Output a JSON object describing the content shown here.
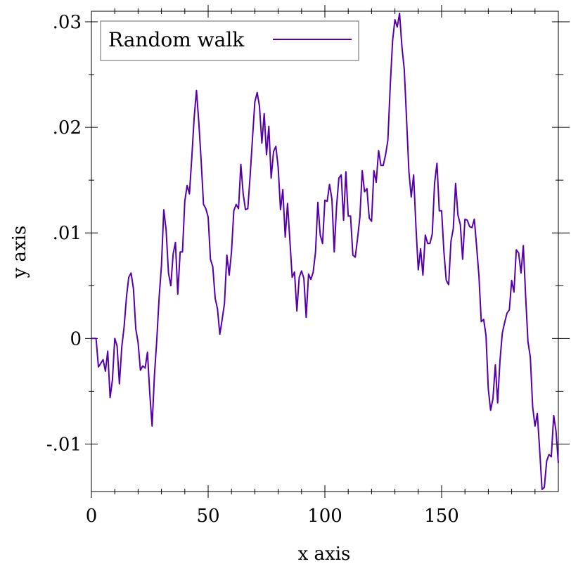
{
  "chart_data": {
    "type": "line",
    "xlabel": "x axis",
    "ylabel": "y axis",
    "xlim": [
      0,
      200
    ],
    "ylim": [
      -0.0145,
      0.031
    ],
    "x_ticks": [
      0,
      50,
      100,
      150
    ],
    "x_tick_labels": [
      "0",
      "50",
      "100",
      "150"
    ],
    "y_ticks": [
      -0.01,
      0,
      0.01,
      0.02,
      0.03
    ],
    "y_tick_labels": [
      "-.01",
      "0",
      ".01",
      ".02",
      ".03"
    ],
    "legend_position": "top-left",
    "grid": false,
    "series": [
      {
        "name": "Random walk",
        "color": "#5500aa",
        "points": [
          [
            0,
            0
          ],
          [
            2,
            0
          ],
          [
            3,
            -0.0027
          ],
          [
            5,
            -0.002
          ],
          [
            6,
            -0.0031
          ],
          [
            7,
            -0.0012
          ],
          [
            8,
            -0.0056
          ],
          [
            9,
            -0.0039
          ],
          [
            10,
            0
          ],
          [
            11,
            -0.0007
          ],
          [
            12,
            -0.0043
          ],
          [
            13,
            -0.0008
          ],
          [
            14,
            0.0011
          ],
          [
            15,
            0.0039
          ],
          [
            16,
            0.0058
          ],
          [
            17,
            0.0062
          ],
          [
            18,
            0.0047
          ],
          [
            19,
            0.0009
          ],
          [
            20,
            -0.0004
          ],
          [
            21,
            -0.003
          ],
          [
            22,
            -0.0026
          ],
          [
            23,
            -0.0028
          ],
          [
            24,
            -0.0013
          ],
          [
            25,
            -0.0052
          ],
          [
            26,
            -0.0083
          ],
          [
            27,
            -0.0035
          ],
          [
            28,
            -0.0001
          ],
          [
            29,
            0.0039
          ],
          [
            30,
            0.0069
          ],
          [
            31,
            0.0122
          ],
          [
            32,
            0.0103
          ],
          [
            33,
            0.0062
          ],
          [
            34,
            0.005
          ],
          [
            35,
            0.008
          ],
          [
            36,
            0.0091
          ],
          [
            37,
            0.0042
          ],
          [
            38,
            0.0082
          ],
          [
            39,
            0.0082
          ],
          [
            40,
            0.013
          ],
          [
            41,
            0.0145
          ],
          [
            42,
            0.0137
          ],
          [
            43,
            0.0172
          ],
          [
            44,
            0.0209
          ],
          [
            45,
            0.0235
          ],
          [
            46,
            0.0205
          ],
          [
            47,
            0.0169
          ],
          [
            48,
            0.0127
          ],
          [
            49,
            0.0123
          ],
          [
            50,
            0.0115
          ],
          [
            51,
            0.0075
          ],
          [
            52,
            0.0068
          ],
          [
            53,
            0.0038
          ],
          [
            54,
            0.0028
          ],
          [
            55,
            0.0004
          ],
          [
            56,
            0.0018
          ],
          [
            57,
            0.0033
          ],
          [
            58,
            0.0079
          ],
          [
            59,
            0.006
          ],
          [
            60,
            0.0082
          ],
          [
            61,
            0.0121
          ],
          [
            62,
            0.0127
          ],
          [
            63,
            0.0123
          ],
          [
            64,
            0.0165
          ],
          [
            65,
            0.0137
          ],
          [
            66,
            0.0122
          ],
          [
            67,
            0.0123
          ],
          [
            68,
            0.0155
          ],
          [
            69,
            0.019
          ],
          [
            70,
            0.0224
          ],
          [
            71,
            0.0233
          ],
          [
            72,
            0.022
          ],
          [
            73,
            0.0185
          ],
          [
            74,
            0.0213
          ],
          [
            75,
            0.0174
          ],
          [
            76,
            0.0201
          ],
          [
            77,
            0.0152
          ],
          [
            78,
            0.0177
          ],
          [
            79,
            0.0182
          ],
          [
            80,
            0.0162
          ],
          [
            81,
            0.0122
          ],
          [
            82,
            0.0141
          ],
          [
            83,
            0.0096
          ],
          [
            84,
            0.0128
          ],
          [
            85,
            0.0093
          ],
          [
            86,
            0.0058
          ],
          [
            87,
            0.0063
          ],
          [
            88,
            0.0026
          ],
          [
            89,
            0.0058
          ],
          [
            90,
            0.0064
          ],
          [
            91,
            0.0057
          ],
          [
            92,
            0.002
          ],
          [
            93,
            0.0061
          ],
          [
            94,
            0.0056
          ],
          [
            95,
            0.0063
          ],
          [
            96,
            0.0082
          ],
          [
            97,
            0.0129
          ],
          [
            98,
            0.0098
          ],
          [
            99,
            0.009
          ],
          [
            100,
            0.0131
          ],
          [
            101,
            0.013
          ],
          [
            102,
            0.0146
          ],
          [
            103,
            0.0132
          ],
          [
            104,
            0.0082
          ],
          [
            105,
            0.0125
          ],
          [
            106,
            0.0152
          ],
          [
            107,
            0.0155
          ],
          [
            108,
            0.0112
          ],
          [
            109,
            0.0158
          ],
          [
            110,
            0.0116
          ],
          [
            111,
            0.0116
          ],
          [
            112,
            0.0079
          ],
          [
            113,
            0.0077
          ],
          [
            114,
            0.0095
          ],
          [
            115,
            0.0115
          ],
          [
            116,
            0.0159
          ],
          [
            117,
            0.0139
          ],
          [
            118,
            0.0142
          ],
          [
            119,
            0.0114
          ],
          [
            120,
            0.0111
          ],
          [
            121,
            0.0159
          ],
          [
            122,
            0.0148
          ],
          [
            123,
            0.0178
          ],
          [
            124,
            0.0164
          ],
          [
            125,
            0.0164
          ],
          [
            126,
            0.0174
          ],
          [
            127,
            0.0188
          ],
          [
            128,
            0.024
          ],
          [
            129,
            0.0282
          ],
          [
            130,
            0.0302
          ],
          [
            131,
            0.0295
          ],
          [
            132,
            0.0308
          ],
          [
            133,
            0.0276
          ],
          [
            134,
            0.0255
          ],
          [
            135,
            0.0207
          ],
          [
            136,
            0.0158
          ],
          [
            137,
            0.0134
          ],
          [
            138,
            0.0155
          ],
          [
            139,
            0.0106
          ],
          [
            140,
            0.0065
          ],
          [
            141,
            0.0085
          ],
          [
            142,
            0.006
          ],
          [
            143,
            0.0098
          ],
          [
            144,
            0.009
          ],
          [
            145,
            0.009
          ],
          [
            146,
            0.0099
          ],
          [
            147,
            0.0147
          ],
          [
            148,
            0.0166
          ],
          [
            149,
            0.0121
          ],
          [
            150,
            0.0121
          ],
          [
            151,
            0.0082
          ],
          [
            152,
            0.0055
          ],
          [
            153,
            0.0051
          ],
          [
            154,
            0.0092
          ],
          [
            155,
            0.0104
          ],
          [
            156,
            0.0147
          ],
          [
            157,
            0.0117
          ],
          [
            158,
            0.0108
          ],
          [
            159,
            0.0075
          ],
          [
            160,
            0.0113
          ],
          [
            161,
            0.0112
          ],
          [
            162,
            0.0106
          ],
          [
            163,
            0.0105
          ],
          [
            164,
            0.0113
          ],
          [
            165,
            0.0087
          ],
          [
            166,
            0.0059
          ],
          [
            167,
            0.0016
          ],
          [
            168,
            0.0018
          ],
          [
            169,
            0.0003
          ],
          [
            170,
            -0.0048
          ],
          [
            171,
            -0.0068
          ],
          [
            172,
            -0.0057
          ],
          [
            173,
            -0.0025
          ],
          [
            174,
            -0.0061
          ],
          [
            175,
            -0.0021
          ],
          [
            176,
            0.0005
          ],
          [
            177,
            0.0015
          ],
          [
            178,
            0.0024
          ],
          [
            179,
            0.0027
          ],
          [
            180,
            0.0055
          ],
          [
            181,
            0.0044
          ],
          [
            182,
            0.0084
          ],
          [
            183,
            0.0081
          ],
          [
            184,
            0.0062
          ],
          [
            185,
            0.0088
          ],
          [
            186,
            0.004
          ],
          [
            187,
            -0.0003
          ],
          [
            188,
            -0.0018
          ],
          [
            189,
            -0.0065
          ],
          [
            190,
            -0.0083
          ],
          [
            191,
            -0.0071
          ],
          [
            192,
            -0.0105
          ],
          [
            193,
            -0.0143
          ],
          [
            194,
            -0.0141
          ],
          [
            195,
            -0.0116
          ],
          [
            196,
            -0.011
          ],
          [
            197,
            -0.0112
          ],
          [
            198,
            -0.0073
          ],
          [
            199,
            -0.0088
          ],
          [
            200,
            -0.0118
          ]
        ]
      }
    ]
  }
}
